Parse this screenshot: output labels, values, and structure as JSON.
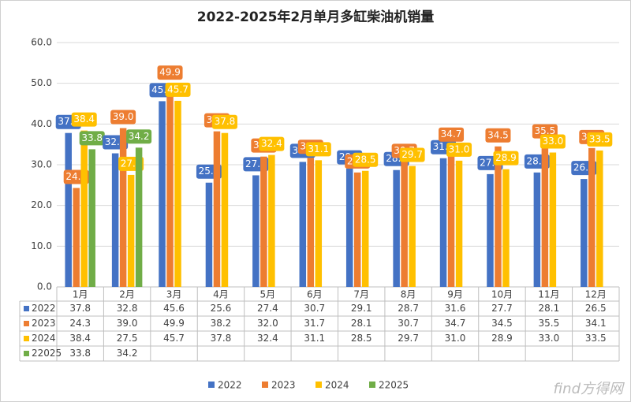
{
  "chart_data": {
    "type": "bar",
    "title": "2022-2025年2月单月多缸柴油机销量",
    "categories": [
      "1月",
      "2月",
      "3月",
      "4月",
      "5月",
      "6月",
      "7月",
      "8月",
      "9月",
      "10月",
      "11月",
      "12月"
    ],
    "series": [
      {
        "name": "2022",
        "color": "#4472c4",
        "values": [
          37.8,
          32.8,
          45.6,
          25.6,
          27.4,
          30.7,
          29.1,
          28.7,
          31.6,
          27.7,
          28.1,
          26.5
        ],
        "value_labels": [
          "37.8",
          "32.8",
          "45.6",
          "25.6",
          "27.4",
          "30.7",
          "29.1",
          "28.7",
          "31.6",
          "27.7",
          "28.1",
          "26.5"
        ]
      },
      {
        "name": "2023",
        "color": "#ed7d31",
        "values": [
          24.3,
          39.0,
          49.9,
          38.2,
          32.0,
          31.7,
          28.1,
          30.7,
          34.7,
          34.5,
          35.5,
          34.1
        ],
        "value_labels": [
          "24.3",
          "39.0",
          "49.9",
          "38.2",
          "32.0",
          "31.7",
          "28.1",
          "30.7",
          "34.7",
          "34.5",
          "35.5",
          "34.1"
        ]
      },
      {
        "name": "2024",
        "color": "#ffc000",
        "values": [
          38.4,
          27.5,
          45.7,
          37.8,
          32.4,
          31.1,
          28.5,
          29.7,
          31.0,
          28.9,
          33.0,
          33.5
        ],
        "value_labels": [
          "38.4",
          "27.5",
          "45.7",
          "37.8",
          "32.4",
          "31.1",
          "28.5",
          "29.7",
          "31.0",
          "28.9",
          "33.0",
          "33.5"
        ]
      },
      {
        "name": "22025",
        "color": "#70ad47",
        "values": [
          33.8,
          34.2,
          null,
          null,
          null,
          null,
          null,
          null,
          null,
          null,
          null,
          null
        ],
        "value_labels": [
          "33.8",
          "34.2",
          null,
          null,
          null,
          null,
          null,
          null,
          null,
          null,
          null,
          null
        ]
      }
    ],
    "ylim": [
      0,
      60
    ],
    "yticks": [
      {
        "value": 0,
        "label": "0.0"
      },
      {
        "value": 10,
        "label": "10.0"
      },
      {
        "value": 20,
        "label": "20.0"
      },
      {
        "value": 30,
        "label": "30.0"
      },
      {
        "value": 40,
        "label": "40.0"
      },
      {
        "value": 50,
        "label": "50.0"
      },
      {
        "value": 60,
        "label": "60.0"
      }
    ],
    "grid": true,
    "legend": "bottom",
    "watermark": "find方得网"
  }
}
